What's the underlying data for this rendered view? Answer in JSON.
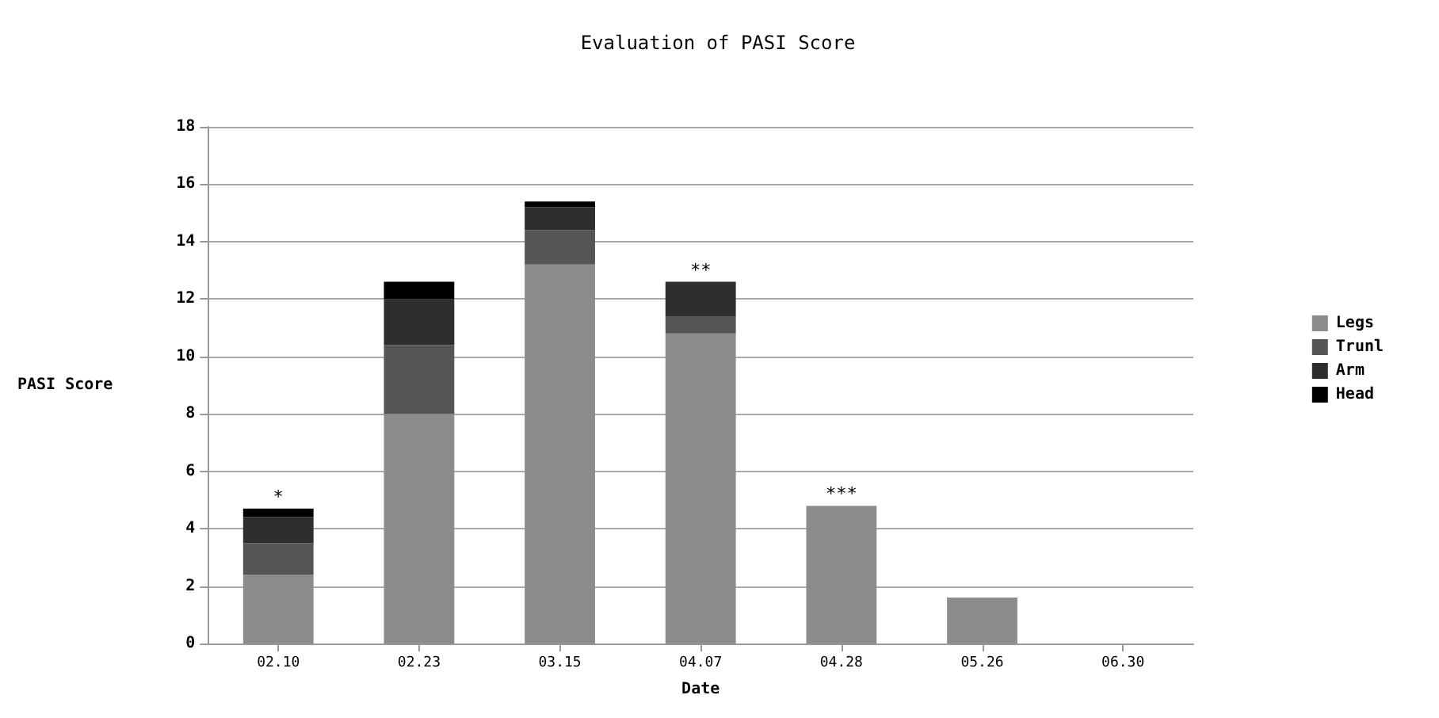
{
  "chart_data": {
    "type": "bar",
    "title": "Evaluation of PASI Score",
    "xlabel": "Date",
    "ylabel": "PASI Score",
    "categories": [
      "02.10",
      "02.23",
      "03.15",
      "04.07",
      "04.28",
      "05.26",
      "06.30"
    ],
    "stacked": true,
    "series": [
      {
        "name": "Legs",
        "color": "#8c8c8c",
        "values": [
          2.4,
          8.0,
          13.2,
          10.8,
          4.8,
          1.6,
          0
        ]
      },
      {
        "name": "Trunl",
        "color": "#555555",
        "values": [
          1.1,
          2.4,
          1.2,
          0.6,
          0,
          0,
          0
        ]
      },
      {
        "name": "Arm",
        "color": "#2e2e2e",
        "values": [
          0.9,
          1.6,
          0.8,
          1.2,
          0,
          0,
          0
        ]
      },
      {
        "name": "Head",
        "color": "#000000",
        "values": [
          0.3,
          0.6,
          0.2,
          0,
          0,
          0,
          0
        ]
      }
    ],
    "annotations": [
      {
        "text": "*",
        "x": "02.10",
        "y": 4.7
      },
      {
        "text": "**",
        "x": "04.07",
        "y": 12.6
      },
      {
        "text": "***",
        "x": "04.28",
        "y": 4.8
      }
    ],
    "ylim": [
      0,
      18
    ],
    "yticks": [
      0,
      2,
      4,
      6,
      8,
      10,
      12,
      14,
      16,
      18
    ],
    "grid": "y",
    "legend": "right"
  }
}
